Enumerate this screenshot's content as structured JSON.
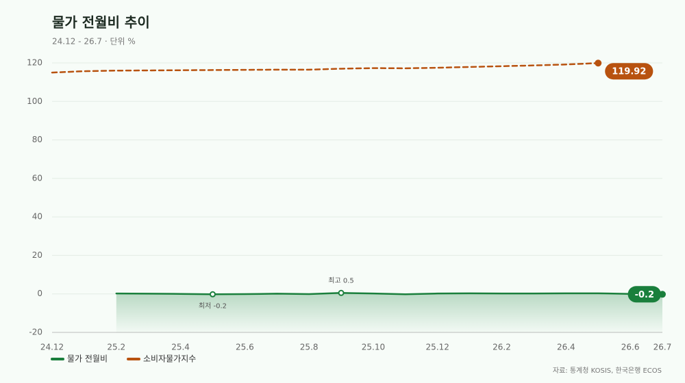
{
  "chart_data": {
    "type": "line",
    "title": "물가 전월비 추이",
    "subtitle": "24.12 - 26.7 · 단위 %",
    "source": "자료: 통계청 KOSIS, 한국은행 ECOS",
    "categories": [
      "24.12",
      null,
      "25.2",
      null,
      "25.4",
      null,
      "25.6",
      null,
      "25.8",
      null,
      "25.10",
      null,
      "25.12",
      null,
      "26.2",
      null,
      "26.4",
      null,
      "26.6",
      "26.7"
    ],
    "series": [
      {
        "name": "물가 전월비",
        "color": "#1a7f3c",
        "dashed": false,
        "area": true,
        "values": [
          null,
          null,
          0.2,
          0.1,
          0.0,
          -0.2,
          -0.1,
          0.1,
          -0.1,
          0.5,
          0.2,
          -0.2,
          0.2,
          0.3,
          0.2,
          0.2,
          0.3,
          0.3,
          0.0,
          -0.2
        ],
        "annotations": [
          {
            "label": "최고 0.5",
            "value": 0.5
          },
          {
            "label": "최저 -0.2",
            "value": -0.2
          }
        ]
      },
      {
        "name": "소비자물가지수",
        "color": "#b8520f",
        "dashed": true,
        "area": false,
        "values": [
          115.0,
          115.7,
          116.0,
          116.1,
          116.2,
          116.3,
          116.4,
          116.5,
          116.5,
          117.0,
          117.3,
          117.2,
          117.5,
          117.9,
          118.3,
          118.7,
          119.2,
          119.92,
          null,
          null
        ]
      }
    ],
    "ylim": [
      -20,
      120
    ],
    "yticks": [
      -20,
      0,
      20,
      40,
      60,
      80,
      100,
      120
    ],
    "grid": true,
    "legend": "bottom-left"
  }
}
